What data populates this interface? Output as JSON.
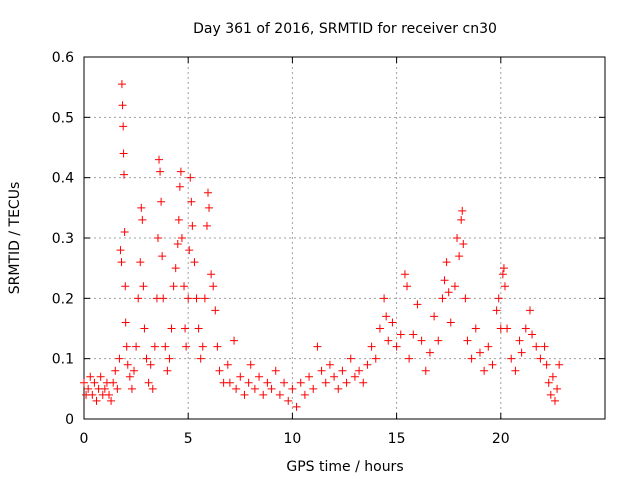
{
  "chart_data": {
    "type": "scatter",
    "title": "Day 361 of 2016, SRMTID for receiver cn30",
    "xlabel": "GPS time / hours",
    "ylabel": "SRMTID / TECUs",
    "xlim": [
      0,
      25
    ],
    "ylim": [
      0,
      0.6
    ],
    "xticks": [
      0,
      5,
      10,
      15,
      20
    ],
    "yticks": [
      0,
      0.1,
      0.2,
      0.3,
      0.4,
      0.5,
      0.6
    ],
    "xtick_labels": [
      "0",
      "5",
      "10",
      "15",
      "20"
    ],
    "ytick_labels": [
      "0",
      "0.1",
      "0.2",
      "0.3",
      "0.4",
      "0.5",
      "0.6"
    ],
    "grid": true,
    "marker": "+",
    "series": [
      {
        "name": "SRMTID",
        "color": "#ff0000",
        "points": [
          [
            0.0,
            0.06
          ],
          [
            0.1,
            0.04
          ],
          [
            0.2,
            0.05
          ],
          [
            0.3,
            0.07
          ],
          [
            0.4,
            0.04
          ],
          [
            0.5,
            0.06
          ],
          [
            0.6,
            0.03
          ],
          [
            0.7,
            0.05
          ],
          [
            0.8,
            0.07
          ],
          [
            0.9,
            0.04
          ],
          [
            1.0,
            0.05
          ],
          [
            1.1,
            0.06
          ],
          [
            1.2,
            0.04
          ],
          [
            1.3,
            0.03
          ],
          [
            1.4,
            0.06
          ],
          [
            1.5,
            0.08
          ],
          [
            1.6,
            0.05
          ],
          [
            1.7,
            0.1
          ],
          [
            1.75,
            0.28
          ],
          [
            1.8,
            0.26
          ],
          [
            1.82,
            0.555
          ],
          [
            1.85,
            0.52
          ],
          [
            1.88,
            0.485
          ],
          [
            1.9,
            0.44
          ],
          [
            1.92,
            0.405
          ],
          [
            1.95,
            0.31
          ],
          [
            1.98,
            0.22
          ],
          [
            2.0,
            0.16
          ],
          [
            2.05,
            0.12
          ],
          [
            2.1,
            0.09
          ],
          [
            2.2,
            0.07
          ],
          [
            2.3,
            0.05
          ],
          [
            2.4,
            0.08
          ],
          [
            2.5,
            0.12
          ],
          [
            2.6,
            0.2
          ],
          [
            2.7,
            0.26
          ],
          [
            2.75,
            0.35
          ],
          [
            2.8,
            0.33
          ],
          [
            2.85,
            0.22
          ],
          [
            2.9,
            0.15
          ],
          [
            3.0,
            0.1
          ],
          [
            3.1,
            0.06
          ],
          [
            3.2,
            0.09
          ],
          [
            3.3,
            0.05
          ],
          [
            3.4,
            0.12
          ],
          [
            3.5,
            0.2
          ],
          [
            3.55,
            0.3
          ],
          [
            3.6,
            0.43
          ],
          [
            3.65,
            0.41
          ],
          [
            3.7,
            0.36
          ],
          [
            3.75,
            0.27
          ],
          [
            3.8,
            0.2
          ],
          [
            3.9,
            0.12
          ],
          [
            4.0,
            0.08
          ],
          [
            4.1,
            0.1
          ],
          [
            4.2,
            0.15
          ],
          [
            4.3,
            0.22
          ],
          [
            4.4,
            0.25
          ],
          [
            4.5,
            0.29
          ],
          [
            4.55,
            0.33
          ],
          [
            4.6,
            0.385
          ],
          [
            4.65,
            0.41
          ],
          [
            4.7,
            0.3
          ],
          [
            4.8,
            0.22
          ],
          [
            4.85,
            0.15
          ],
          [
            4.9,
            0.12
          ],
          [
            5.0,
            0.2
          ],
          [
            5.05,
            0.28
          ],
          [
            5.1,
            0.4
          ],
          [
            5.15,
            0.36
          ],
          [
            5.2,
            0.32
          ],
          [
            5.3,
            0.26
          ],
          [
            5.4,
            0.2
          ],
          [
            5.5,
            0.15
          ],
          [
            5.6,
            0.1
          ],
          [
            5.7,
            0.12
          ],
          [
            5.8,
            0.2
          ],
          [
            5.9,
            0.32
          ],
          [
            5.95,
            0.375
          ],
          [
            6.0,
            0.35
          ],
          [
            6.1,
            0.24
          ],
          [
            6.2,
            0.22
          ],
          [
            6.3,
            0.18
          ],
          [
            6.4,
            0.12
          ],
          [
            6.5,
            0.08
          ],
          [
            6.7,
            0.06
          ],
          [
            6.9,
            0.09
          ],
          [
            7.0,
            0.06
          ],
          [
            7.2,
            0.13
          ],
          [
            7.3,
            0.05
          ],
          [
            7.5,
            0.07
          ],
          [
            7.7,
            0.04
          ],
          [
            7.9,
            0.06
          ],
          [
            8.0,
            0.09
          ],
          [
            8.2,
            0.05
          ],
          [
            8.4,
            0.07
          ],
          [
            8.6,
            0.04
          ],
          [
            8.8,
            0.06
          ],
          [
            9.0,
            0.05
          ],
          [
            9.2,
            0.08
          ],
          [
            9.4,
            0.04
          ],
          [
            9.6,
            0.06
          ],
          [
            9.8,
            0.03
          ],
          [
            10.0,
            0.05
          ],
          [
            10.2,
            0.02
          ],
          [
            10.4,
            0.06
          ],
          [
            10.6,
            0.04
          ],
          [
            10.8,
            0.07
          ],
          [
            11.0,
            0.05
          ],
          [
            11.2,
            0.12
          ],
          [
            11.4,
            0.08
          ],
          [
            11.6,
            0.06
          ],
          [
            11.8,
            0.09
          ],
          [
            12.0,
            0.07
          ],
          [
            12.2,
            0.05
          ],
          [
            12.4,
            0.08
          ],
          [
            12.6,
            0.06
          ],
          [
            12.8,
            0.1
          ],
          [
            13.0,
            0.07
          ],
          [
            13.2,
            0.08
          ],
          [
            13.4,
            0.06
          ],
          [
            13.6,
            0.09
          ],
          [
            13.8,
            0.12
          ],
          [
            14.0,
            0.1
          ],
          [
            14.2,
            0.15
          ],
          [
            14.4,
            0.2
          ],
          [
            14.5,
            0.17
          ],
          [
            14.6,
            0.13
          ],
          [
            14.8,
            0.16
          ],
          [
            15.0,
            0.12
          ],
          [
            15.2,
            0.14
          ],
          [
            15.4,
            0.24
          ],
          [
            15.5,
            0.22
          ],
          [
            15.6,
            0.1
          ],
          [
            15.8,
            0.14
          ],
          [
            16.0,
            0.19
          ],
          [
            16.2,
            0.13
          ],
          [
            16.4,
            0.08
          ],
          [
            16.6,
            0.11
          ],
          [
            16.8,
            0.17
          ],
          [
            17.0,
            0.13
          ],
          [
            17.2,
            0.2
          ],
          [
            17.3,
            0.23
          ],
          [
            17.4,
            0.26
          ],
          [
            17.5,
            0.21
          ],
          [
            17.6,
            0.16
          ],
          [
            17.8,
            0.22
          ],
          [
            17.9,
            0.3
          ],
          [
            18.0,
            0.27
          ],
          [
            18.1,
            0.33
          ],
          [
            18.15,
            0.345
          ],
          [
            18.2,
            0.29
          ],
          [
            18.3,
            0.2
          ],
          [
            18.4,
            0.13
          ],
          [
            18.6,
            0.1
          ],
          [
            18.8,
            0.15
          ],
          [
            19.0,
            0.11
          ],
          [
            19.2,
            0.08
          ],
          [
            19.4,
            0.12
          ],
          [
            19.6,
            0.09
          ],
          [
            19.8,
            0.18
          ],
          [
            19.9,
            0.2
          ],
          [
            20.0,
            0.15
          ],
          [
            20.1,
            0.24
          ],
          [
            20.15,
            0.25
          ],
          [
            20.2,
            0.22
          ],
          [
            20.3,
            0.15
          ],
          [
            20.5,
            0.1
          ],
          [
            20.7,
            0.08
          ],
          [
            20.9,
            0.13
          ],
          [
            21.0,
            0.11
          ],
          [
            21.2,
            0.15
          ],
          [
            21.4,
            0.18
          ],
          [
            21.5,
            0.14
          ],
          [
            21.7,
            0.12
          ],
          [
            21.9,
            0.1
          ],
          [
            22.1,
            0.12
          ],
          [
            22.2,
            0.09
          ],
          [
            22.3,
            0.06
          ],
          [
            22.4,
            0.04
          ],
          [
            22.5,
            0.07
          ],
          [
            22.6,
            0.03
          ],
          [
            22.7,
            0.05
          ],
          [
            22.8,
            0.09
          ]
        ]
      }
    ]
  }
}
